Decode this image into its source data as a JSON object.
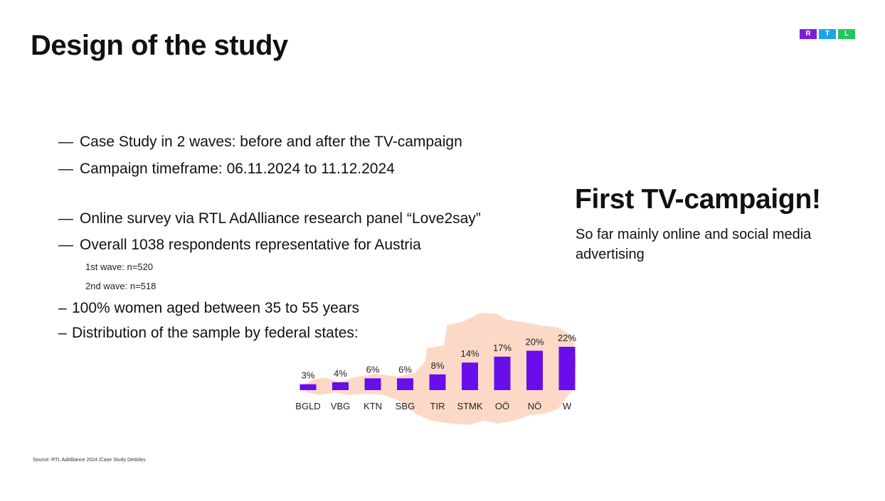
{
  "slide": {
    "title": "Design of the study",
    "logo_letters": [
      "R",
      "T",
      "L"
    ],
    "logo_colors": [
      "#7B1FD8",
      "#1CA3EC",
      "#22C55E"
    ]
  },
  "bullets": [
    {
      "dash": "—",
      "text": "Case Study in 2 waves: before and after the TV-campaign"
    },
    {
      "dash": "—",
      "text": "Campaign timeframe: 06.11.2024 to 11.12.2024"
    },
    {
      "dash": "—",
      "text": "Online survey via RTL AdAlliance research panel “Love2say”"
    },
    {
      "dash": "—",
      "text": "Overall 1038 respondents representative for Austria"
    },
    {
      "dash": "–",
      "text": "100% women aged between 35 to 55 years"
    },
    {
      "dash": "–",
      "text": "Distribution of the sample by federal states:"
    }
  ],
  "sub_items": [
    "1st wave: n=520",
    "2nd wave: n=518"
  ],
  "callout": {
    "heading": "First TV-campaign!",
    "text": "So far mainly online and social media advertising"
  },
  "source": "Source: RTL AdAlliance 2024 |Case Study Dedoles",
  "chart_data": {
    "type": "bar",
    "categories": [
      "BGLD",
      "VBG",
      "KTN",
      "SBG",
      "TIR",
      "STMK",
      "OÖ",
      "NÖ",
      "W"
    ],
    "values": [
      3,
      4,
      6,
      6,
      8,
      14,
      17,
      20,
      22
    ],
    "value_labels": [
      "3%",
      "4%",
      "6%",
      "6%",
      "8%",
      "14%",
      "17%",
      "20%",
      "22%"
    ],
    "ylim": [
      0,
      22
    ],
    "grid": false,
    "bar_color": "#6A0DEB",
    "background_map_color": "#FCD9C7"
  }
}
